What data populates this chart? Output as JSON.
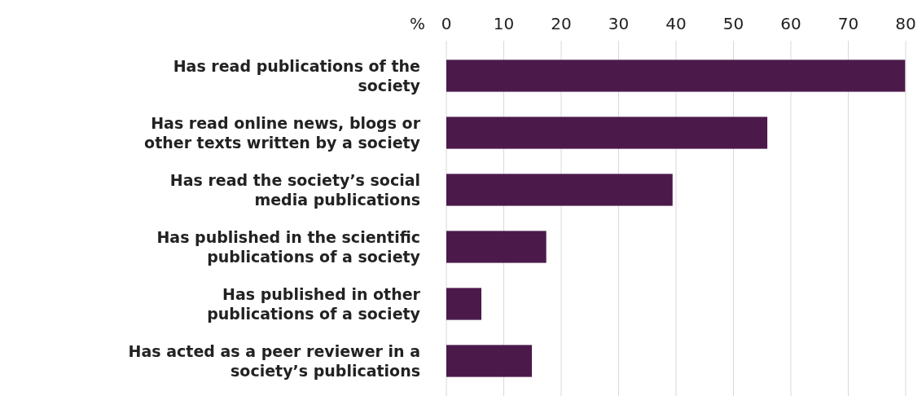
{
  "chart_data": {
    "type": "bar",
    "orientation": "horizontal",
    "xlabel": "%",
    "categories": [
      "Has read publications of the society",
      "Has read online news, blogs or other texts written by a society",
      "Has read the society’s social media publications",
      "Has published in the scientific publications of a society",
      "Has published in other publications of a society",
      "Has acted as a peer reviewer in a society’s publications"
    ],
    "values": [
      79.9,
      55.9,
      39.4,
      17.4,
      6.1,
      14.9
    ],
    "color": "#4b1a4b",
    "xlim": [
      0,
      80
    ],
    "xticks": [
      0,
      10,
      20,
      30,
      40,
      50,
      60,
      70,
      80
    ],
    "grid": "x"
  }
}
